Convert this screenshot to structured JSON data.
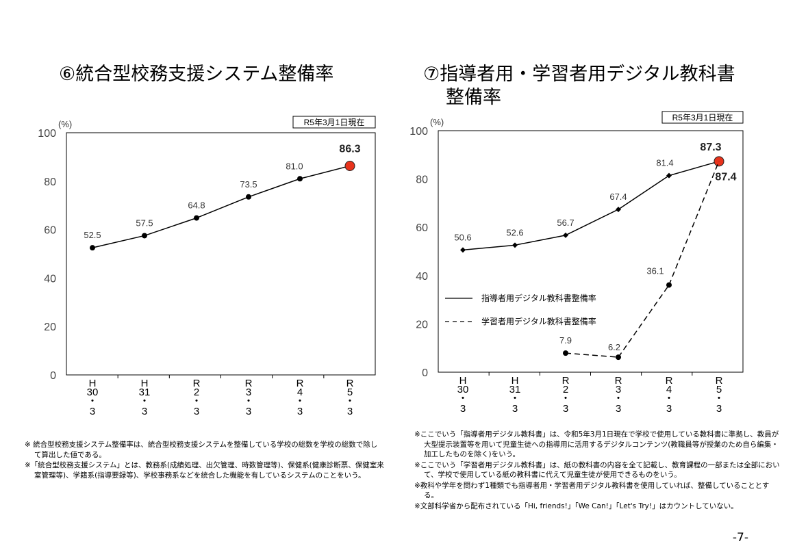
{
  "chart_data": [
    {
      "type": "line",
      "title": "⑥統合型校務支援システム整備率",
      "ylabel": "(%)",
      "date_note": "R5年3月1日現在",
      "ylim": [
        0,
        100
      ],
      "yticks": [
        "0",
        "20",
        "40",
        "60",
        "80",
        "100"
      ],
      "categories": [
        [
          "H",
          "30",
          "・",
          "3"
        ],
        [
          "H",
          "31",
          "・",
          "3"
        ],
        [
          "R",
          "2",
          "・",
          "3"
        ],
        [
          "R",
          "3",
          "・",
          "3"
        ],
        [
          "R",
          "4",
          "・",
          "3"
        ],
        [
          "R",
          "5",
          "・",
          "3"
        ]
      ],
      "series": [
        {
          "values": [
            52.5,
            57.5,
            64.8,
            73.5,
            81.0,
            86.3
          ],
          "labels": [
            "52.5",
            "57.5",
            "64.8",
            "73.5",
            "81.0",
            "86.3"
          ],
          "style": "solid",
          "highlight_color": "#e8331c"
        }
      ],
      "grid": false
    },
    {
      "type": "line",
      "title": "⑦指導者用・学習者用デジタル教科書整備率",
      "ylabel": "(%)",
      "date_note": "R5年3月1日現在",
      "ylim": [
        0,
        100
      ],
      "yticks": [
        "0",
        "20",
        "40",
        "60",
        "80",
        "100"
      ],
      "categories": [
        [
          "H",
          "30",
          "・",
          "3"
        ],
        [
          "H",
          "31",
          "・",
          "3"
        ],
        [
          "R",
          "2",
          "・",
          "3"
        ],
        [
          "R",
          "3",
          "・",
          "3"
        ],
        [
          "R",
          "4",
          "・",
          "3"
        ],
        [
          "R",
          "5",
          "・",
          "3"
        ]
      ],
      "series": [
        {
          "name": "指導者用デジタル教科書整備率",
          "values": [
            50.6,
            52.6,
            56.7,
            67.4,
            81.4,
            87.3
          ],
          "labels": [
            "50.6",
            "52.6",
            "56.7",
            "67.4",
            "81.4",
            "87.3"
          ],
          "style": "solid",
          "marker": "diamond"
        },
        {
          "name": "学習者用デジタル教科書整備率",
          "values": [
            null,
            null,
            7.9,
            6.2,
            36.1,
            87.4
          ],
          "labels": [
            "",
            "",
            "7.9",
            "6.2",
            "36.1",
            "87.4"
          ],
          "style": "dashed",
          "marker": "circle"
        }
      ],
      "legend": "center-left",
      "highlight_color": "#e8331c",
      "grid": false
    }
  ],
  "titles": {
    "left": "⑥統合型校務支援システム整備率",
    "right_line1": "⑦指導者用・学習者用デジタル教科書",
    "right_line2": "整備率"
  },
  "notes_left": [
    "※ 統合型校務支援システム整備率は、統合型校務支援システムを整備している学校の総数を学校の総数で除して算出した値である。",
    "※「統合型校務支援システム」とは、教務系(成績処理、出欠管理、時数管理等)、保健系(健康診断票、保健室来室管理等)、学籍系(指導要録等)、学校事務系などを統合した機能を有しているシステムのことをいう。"
  ],
  "notes_right": [
    "※ここでいう「指導者用デジタル教科書」は、令和5年3月1日現在で学校で使用している教科書に準拠し、教員が大型提示装置等を用いて児童生徒への指導用に活用するデジタルコンテンツ(教職員等が授業のため自ら編集・加工したものを除く)をいう。",
    "※ここでいう「学習者用デジタル教科書」は、紙の教科書の内容を全て記載し、教育課程の一部または全部において、学校で使用している紙の教科書に代えて児童生徒が使用できるものをいう。",
    "※教科や学年を問わず1種類でも指導者用・学習者用デジタル教科書を使用していれば、整備していることとする。",
    "※文部科学省から配布されている「Hi, friends!」「We Can!」「Let's Try!」はカウントしていない。"
  ],
  "page_number": "-7-"
}
